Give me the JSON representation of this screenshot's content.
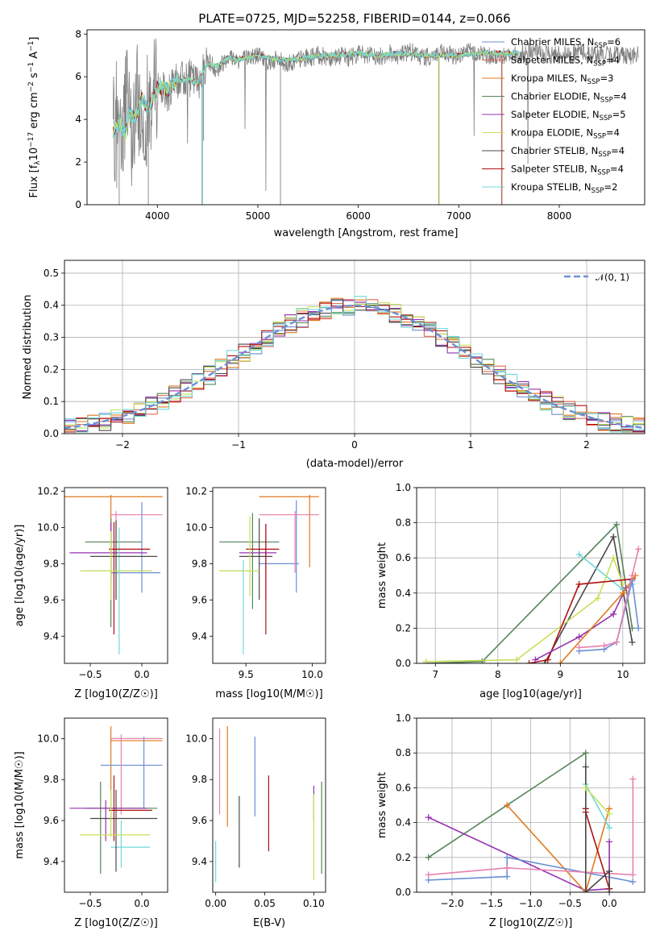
{
  "page_title": "PLATE=0725, MJD=52258, FIBERID=0144, z=0.066",
  "colors": {
    "chabrier_miles": "#6b8fd6",
    "salpeter_miles": "#e36b52",
    "kroupa_miles": "#e07a1f",
    "chabrier_elodie": "#55855a",
    "salpeter_elodie": "#9630b0",
    "kroupa_elodie": "#c7e05a",
    "chabrier_stelib": "#4a4a4a",
    "salpeter_stelib": "#b01010",
    "kroupa_stelib": "#70d8d8",
    "pink": "#e880b0",
    "grid": "#b0b0b0",
    "data": "#808080"
  },
  "legend_spectrum": [
    {
      "pre": "Chabrier MILES, N",
      "sub": "SSP",
      "post": "=6",
      "color": "#6b8fd6"
    },
    {
      "pre": "Salpeter MILES, N",
      "sub": "SSP",
      "post": "=4",
      "color": "#e36b52"
    },
    {
      "pre": "Kroupa MILES, N",
      "sub": "SSP",
      "post": "=3",
      "color": "#e07a1f"
    },
    {
      "pre": "Chabrier ELODIE, N",
      "sub": "SSP",
      "post": "=4",
      "color": "#55855a"
    },
    {
      "pre": "Salpeter ELODIE, N",
      "sub": "SSP",
      "post": "=5",
      "color": "#9630b0"
    },
    {
      "pre": "Kroupa ELODIE, N",
      "sub": "SSP",
      "post": "=4",
      "color": "#c7e05a"
    },
    {
      "pre": "Chabrier STELIB, N",
      "sub": "SSP",
      "post": "=4",
      "color": "#4a4a4a"
    },
    {
      "pre": "Salpeter STELIB, N",
      "sub": "SSP",
      "post": "=4",
      "color": "#b01010"
    },
    {
      "pre": "Kroupa STELIB, N",
      "sub": "SSP",
      "post": "=2",
      "color": "#70d8d8"
    }
  ],
  "chart_data": [
    {
      "id": "spectrum",
      "type": "line",
      "title": "PLATE=0725, MJD=52258, FIBERID=0144, z=0.066",
      "xlabel": "wavelength [Angstrom, rest frame]",
      "ylabel": "Flux [f_λ 10^-17 erg cm^-2 s^-1 A^-1]",
      "xlim": [
        3300,
        8850
      ],
      "ylim": [
        0,
        8.2
      ],
      "xticks": [
        "4000",
        "5000",
        "6000",
        "7000",
        "8000"
      ],
      "yticks": [
        "0",
        "2",
        "4",
        "6",
        "8"
      ],
      "series": [
        {
          "name": "data",
          "x": [
            3560,
            3600,
            3650,
            3700,
            3750,
            3800,
            3850,
            3900,
            3950,
            4000,
            4100,
            4200,
            4300,
            4400,
            4500,
            4600,
            4700,
            4800,
            4900,
            5000,
            5100,
            5200,
            5300,
            5400,
            5500,
            5600,
            5700,
            5800,
            5900,
            6000,
            6100,
            6200,
            6300,
            6400,
            6500,
            6600,
            6700,
            6800,
            6900,
            7000,
            7100,
            7200,
            7300,
            7400,
            7500,
            7600,
            7700,
            7800,
            7900,
            8000,
            8100,
            8200,
            8300,
            8400,
            8500,
            8600,
            8700,
            8790
          ],
          "y": [
            3.5,
            3.2,
            4.0,
            4.8,
            3.0,
            5.0,
            3.8,
            4.5,
            5.0,
            5.6,
            5.2,
            5.8,
            6.0,
            5.7,
            6.8,
            6.3,
            7.0,
            6.8,
            6.9,
            7.0,
            6.7,
            6.8,
            6.6,
            6.8,
            6.9,
            7.0,
            6.9,
            7.0,
            6.9,
            7.1,
            7.0,
            6.9,
            7.1,
            7.0,
            7.2,
            7.0,
            6.9,
            7.1,
            7.0,
            7.0,
            7.2,
            7.1,
            7.0,
            6.9,
            7.1,
            7.0,
            7.2,
            7.1,
            7.0,
            7.1,
            7.0,
            7.2,
            7.1,
            7.0,
            7.0,
            7.1,
            7.0,
            7.0
          ]
        },
        {
          "name": "model",
          "x": [
            3560,
            3620,
            3680,
            3720,
            3780,
            3850,
            3900,
            3950,
            4000,
            4100,
            4200,
            4300,
            4400,
            4500,
            4600,
            4700,
            4800,
            4900,
            5000,
            5200,
            5400,
            5600,
            5800,
            6000,
            6200,
            6400,
            6600,
            6800,
            7000,
            7200,
            7400,
            7600
          ],
          "y": [
            3.4,
            3.9,
            3.3,
            4.3,
            4.1,
            5.0,
            4.5,
            4.9,
            5.5,
            5.4,
            5.8,
            5.9,
            5.7,
            6.6,
            6.5,
            6.9,
            6.8,
            6.9,
            7.0,
            6.8,
            6.8,
            7.0,
            7.0,
            7.1,
            7.0,
            7.1,
            7.0,
            7.0,
            7.0,
            7.1,
            7.1,
            7.1
          ]
        }
      ]
    },
    {
      "id": "residuals",
      "type": "bar",
      "xlabel": "(data-model)/error",
      "ylabel": "Normed distribution",
      "xlim": [
        -2.5,
        2.5
      ],
      "ylim": [
        0,
        0.54
      ],
      "xticks": [
        "−2",
        "−1",
        "0",
        "1",
        "2"
      ],
      "yticks": [
        "0.0",
        "0.1",
        "0.2",
        "0.3",
        "0.4",
        "0.5"
      ],
      "legend": "𝒩(0, 1)"
    },
    {
      "id": "age_vs_Z",
      "type": "scatter",
      "xlabel": "Z [log10(Z/Z☉)]",
      "ylabel": "age [log10(age/yr)]",
      "xlim": [
        -0.75,
        0.25
      ],
      "ylim": [
        9.25,
        10.22
      ],
      "xticks": [
        "−0.5",
        "0.0"
      ],
      "yticks": [
        "9.4",
        "9.6",
        "9.8",
        "10.0",
        "10.2"
      ],
      "points": [
        {
          "x": -0.3,
          "y": 10.17,
          "xe": [
            -0.8,
            0.2
          ],
          "ye": [
            9.9,
            10.18
          ],
          "c": "#e07a1f"
        },
        {
          "x": 0.0,
          "y": 9.75,
          "xe": [
            -0.3,
            0.18
          ],
          "ye": [
            9.64,
            10.14
          ],
          "c": "#6b8fd6"
        },
        {
          "x": -0.25,
          "y": 10.07,
          "xe": [
            -0.3,
            0.2
          ],
          "ye": [
            9.6,
            10.09
          ],
          "c": "#e880b0"
        },
        {
          "x": -0.3,
          "y": 9.92,
          "xe": [
            -0.55,
            0.0
          ],
          "ye": [
            9.45,
            10.05
          ],
          "c": "#55855a"
        },
        {
          "x": -0.3,
          "y": 9.86,
          "xe": [
            -0.7,
            0.05
          ],
          "ye": [
            9.7,
            10.03
          ],
          "c": "#9630b0"
        },
        {
          "x": -0.22,
          "y": 9.76,
          "xe": [
            -0.55,
            0.1
          ],
          "ye": [
            9.3,
            10.0
          ],
          "c": "#70d8d8"
        },
        {
          "x": -0.25,
          "y": 9.84,
          "xe": [
            -0.5,
            0.15
          ],
          "ye": [
            9.6,
            10.04
          ],
          "c": "#4a4a4a"
        },
        {
          "x": -0.27,
          "y": 9.88,
          "xe": [
            -0.32,
            0.08
          ],
          "ye": [
            9.41,
            10.03
          ],
          "c": "#b01010"
        },
        {
          "x": -0.3,
          "y": 9.76,
          "xe": [
            -0.6,
            0.1
          ],
          "ye": [
            9.6,
            9.98
          ],
          "c": "#c7e05a"
        }
      ]
    },
    {
      "id": "age_vs_mass",
      "type": "scatter",
      "xlabel": "mass [log10(M/M☉)]",
      "ylabel": "",
      "xlim": [
        9.25,
        10.1
      ],
      "ylim": [
        9.25,
        10.22
      ],
      "xticks": [
        "9.5",
        "10.0"
      ],
      "yticks": [
        "9.4",
        "9.6",
        "9.8",
        "10.0",
        "10.2"
      ],
      "points": [
        {
          "x": 9.98,
          "y": 10.17,
          "xe": [
            9.6,
            10.05
          ],
          "ye": [
            9.78,
            10.18
          ],
          "c": "#e07a1f"
        },
        {
          "x": 9.88,
          "y": 9.8,
          "xe": [
            9.6,
            9.9
          ],
          "ye": [
            9.64,
            10.15
          ],
          "c": "#6b8fd6"
        },
        {
          "x": 9.87,
          "y": 10.07,
          "xe": [
            9.6,
            10.05
          ],
          "ye": [
            9.75,
            10.09
          ],
          "c": "#e880b0"
        },
        {
          "x": 9.55,
          "y": 9.92,
          "xe": [
            9.3,
            9.75
          ],
          "ye": [
            9.55,
            10.08
          ],
          "c": "#55855a"
        },
        {
          "x": 9.65,
          "y": 9.86,
          "xe": [
            9.45,
            9.73
          ],
          "ye": [
            9.6,
            10.02
          ],
          "c": "#9630b0"
        },
        {
          "x": 9.48,
          "y": 9.76,
          "xe": [
            9.3,
            9.55
          ],
          "ye": [
            9.3,
            9.82
          ],
          "c": "#70d8d8"
        },
        {
          "x": 9.6,
          "y": 9.84,
          "xe": [
            9.45,
            9.7
          ],
          "ye": [
            9.6,
            10.05
          ],
          "c": "#4a4a4a"
        },
        {
          "x": 9.65,
          "y": 9.88,
          "xe": [
            9.5,
            9.75
          ],
          "ye": [
            9.41,
            10.02
          ],
          "c": "#b01010"
        },
        {
          "x": 9.53,
          "y": 9.76,
          "xe": [
            9.3,
            9.6
          ],
          "ye": [
            9.62,
            10.06
          ],
          "c": "#c7e05a"
        }
      ]
    },
    {
      "id": "massweight_vs_age",
      "type": "line",
      "xlabel": "age [log10(age/yr)]",
      "ylabel": "mass weight",
      "xlim": [
        6.7,
        10.35
      ],
      "ylim": [
        0,
        1.0
      ],
      "xticks": [
        "7",
        "8",
        "9",
        "10"
      ],
      "yticks": [
        "0.0",
        "0.2",
        "0.4",
        "0.6",
        "0.8",
        "1.0"
      ],
      "series": [
        {
          "c": "#55855a",
          "x": [
            6.85,
            7.75,
            9.9,
            10.15
          ],
          "y": [
            0.0,
            0.01,
            0.79,
            0.2
          ]
        },
        {
          "c": "#4a4a4a",
          "x": [
            8.75,
            9.85,
            10.15
          ],
          "y": [
            0.0,
            0.72,
            0.12
          ]
        },
        {
          "c": "#70d8d8",
          "x": [
            9.3,
            10.0,
            10.15
          ],
          "y": [
            0.62,
            0.42,
            0.45
          ]
        },
        {
          "c": "#c7e05a",
          "x": [
            6.85,
            8.3,
            9.6,
            9.85,
            10.0
          ],
          "y": [
            0.01,
            0.02,
            0.37,
            0.6,
            0.45
          ]
        },
        {
          "c": "#b01010",
          "x": [
            8.5,
            8.8,
            9.3,
            10.15
          ],
          "y": [
            0.0,
            0.02,
            0.45,
            0.48
          ]
        },
        {
          "c": "#9630b0",
          "x": [
            8.6,
            9.3,
            9.85,
            10.05
          ],
          "y": [
            0.02,
            0.15,
            0.28,
            0.43
          ]
        },
        {
          "c": "#e07a1f",
          "x": [
            9.0,
            10.0,
            10.2
          ],
          "y": [
            0.0,
            0.4,
            0.5
          ]
        },
        {
          "c": "#6b8fd6",
          "x": [
            9.3,
            9.7,
            9.9,
            10.15,
            10.25
          ],
          "y": [
            0.07,
            0.08,
            0.12,
            0.47,
            0.2
          ]
        },
        {
          "c": "#e880b0",
          "x": [
            9.3,
            9.7,
            9.9,
            10.15,
            10.25
          ],
          "y": [
            0.09,
            0.1,
            0.12,
            0.5,
            0.65
          ]
        }
      ]
    },
    {
      "id": "mass_vs_Z",
      "type": "scatter",
      "xlabel": "Z [log10(Z/Z☉)]",
      "ylabel": "mass [log10(M/M☉)]",
      "xlim": [
        -0.75,
        0.25
      ],
      "ylim": [
        9.25,
        10.1
      ],
      "xticks": [
        "−0.5",
        "0.0"
      ],
      "yticks": [
        "9.4",
        "9.6",
        "9.8",
        "10.0"
      ],
      "points": [
        {
          "x": -0.3,
          "y": 9.99,
          "xe": [
            -0.3,
            0.2
          ],
          "ye": [
            9.6,
            10.06
          ],
          "c": "#e07a1f"
        },
        {
          "x": 0.02,
          "y": 9.87,
          "xe": [
            -0.4,
            0.2
          ],
          "ye": [
            9.66,
            10.01
          ],
          "c": "#6b8fd6"
        },
        {
          "x": -0.2,
          "y": 10.0,
          "xe": [
            -0.3,
            0.2
          ],
          "ye": [
            9.63,
            10.02
          ],
          "c": "#e880b0"
        },
        {
          "x": -0.4,
          "y": 9.66,
          "xe": [
            -0.55,
            0.15
          ],
          "ye": [
            9.34,
            9.79
          ],
          "c": "#55855a"
        },
        {
          "x": -0.35,
          "y": 9.66,
          "xe": [
            -0.7,
            0.05
          ],
          "ye": [
            9.5,
            9.7
          ],
          "c": "#9630b0"
        },
        {
          "x": -0.2,
          "y": 9.47,
          "xe": [
            -0.3,
            0.08
          ],
          "ye": [
            9.37,
            9.6
          ],
          "c": "#70d8d8"
        },
        {
          "x": -0.25,
          "y": 9.61,
          "xe": [
            -0.5,
            0.15
          ],
          "ye": [
            9.35,
            9.75
          ],
          "c": "#4a4a4a"
        },
        {
          "x": -0.27,
          "y": 9.65,
          "xe": [
            -0.32,
            0.1
          ],
          "ye": [
            9.5,
            9.82
          ],
          "c": "#b01010"
        },
        {
          "x": -0.3,
          "y": 9.53,
          "xe": [
            -0.6,
            0.08
          ],
          "ye": [
            9.52,
            9.75
          ],
          "c": "#c7e05a"
        }
      ]
    },
    {
      "id": "mass_vs_ebv",
      "type": "scatter",
      "xlabel": "E(B-V)",
      "ylabel": "",
      "xlim": [
        -0.003,
        0.112
      ],
      "ylim": [
        9.25,
        10.1
      ],
      "xticks": [
        "0.00",
        "0.05",
        "0.10"
      ],
      "yticks": [
        "9.4",
        "9.6",
        "9.8",
        "10.0"
      ],
      "points": [
        {
          "x": 0.004,
          "y": 9.85,
          "ye": [
            9.63,
            10.05
          ],
          "c": "#e880b0"
        },
        {
          "x": 0.012,
          "y": 9.8,
          "ye": [
            9.57,
            10.06
          ],
          "c": "#e07a1f"
        },
        {
          "x": 0.024,
          "y": 9.55,
          "ye": [
            9.37,
            9.72
          ],
          "c": "#4a4a4a"
        },
        {
          "x": 0.04,
          "y": 9.8,
          "ye": [
            9.62,
            10.01
          ],
          "c": "#6b8fd6"
        },
        {
          "x": 0.054,
          "y": 9.63,
          "ye": [
            9.45,
            9.82
          ],
          "c": "#b01010"
        },
        {
          "x": 0.1,
          "y": 9.7,
          "ye": [
            9.6,
            9.77
          ],
          "c": "#9630b0"
        },
        {
          "x": 0.1,
          "y": 9.52,
          "ye": [
            9.31,
            9.73
          ],
          "c": "#c7e05a"
        },
        {
          "x": 0.108,
          "y": 9.56,
          "ye": [
            9.34,
            9.79
          ],
          "c": "#55855a"
        },
        {
          "x": 0.0,
          "y": 9.4,
          "ye": [
            9.3,
            9.5
          ],
          "c": "#70d8d8"
        }
      ]
    },
    {
      "id": "massweight_vs_Z",
      "type": "line",
      "xlabel": "Z [log10(Z/Z☉)]",
      "ylabel": "mass weight",
      "xlim": [
        -2.45,
        0.45
      ],
      "ylim": [
        0,
        1.0
      ],
      "xticks": [
        "−2.0",
        "−1.5",
        "−1.0",
        "−0.5",
        "0.0"
      ],
      "yticks": [
        "0.0",
        "0.2",
        "0.4",
        "0.6",
        "0.8",
        "1.0"
      ],
      "series": [
        {
          "c": "#55855a",
          "x": [
            -2.3,
            -0.3,
            -0.3
          ],
          "y": [
            0.2,
            0.8,
            0.01
          ]
        },
        {
          "c": "#9630b0",
          "x": [
            -2.3,
            -0.3,
            0.0,
            0.0
          ],
          "y": [
            0.43,
            0.01,
            0.02,
            0.29
          ]
        },
        {
          "c": "#e07a1f",
          "x": [
            -1.3,
            -0.3,
            0.0
          ],
          "y": [
            0.5,
            0.0,
            0.48
          ]
        },
        {
          "c": "#6b8fd6",
          "x": [
            -2.3,
            -1.3,
            -1.3,
            0.3
          ],
          "y": [
            0.07,
            0.09,
            0.2,
            0.06
          ]
        },
        {
          "c": "#e880b0",
          "x": [
            -2.3,
            -1.3,
            0.3,
            0.3
          ],
          "y": [
            0.1,
            0.14,
            0.1,
            0.65
          ]
        },
        {
          "c": "#70d8d8",
          "x": [
            -0.3,
            0.0
          ],
          "y": [
            0.62,
            0.37
          ]
        },
        {
          "c": "#b01010",
          "x": [
            -0.3,
            -0.3,
            0.0
          ],
          "y": [
            0.48,
            0.46,
            0.02
          ]
        },
        {
          "c": "#4a4a4a",
          "x": [
            -0.3,
            -0.3,
            0.0,
            0.0
          ],
          "y": [
            0.72,
            0.0,
            0.12,
            0.0
          ]
        },
        {
          "c": "#c7e05a",
          "x": [
            -0.3,
            0.0
          ],
          "y": [
            0.6,
            0.45
          ]
        }
      ]
    }
  ]
}
